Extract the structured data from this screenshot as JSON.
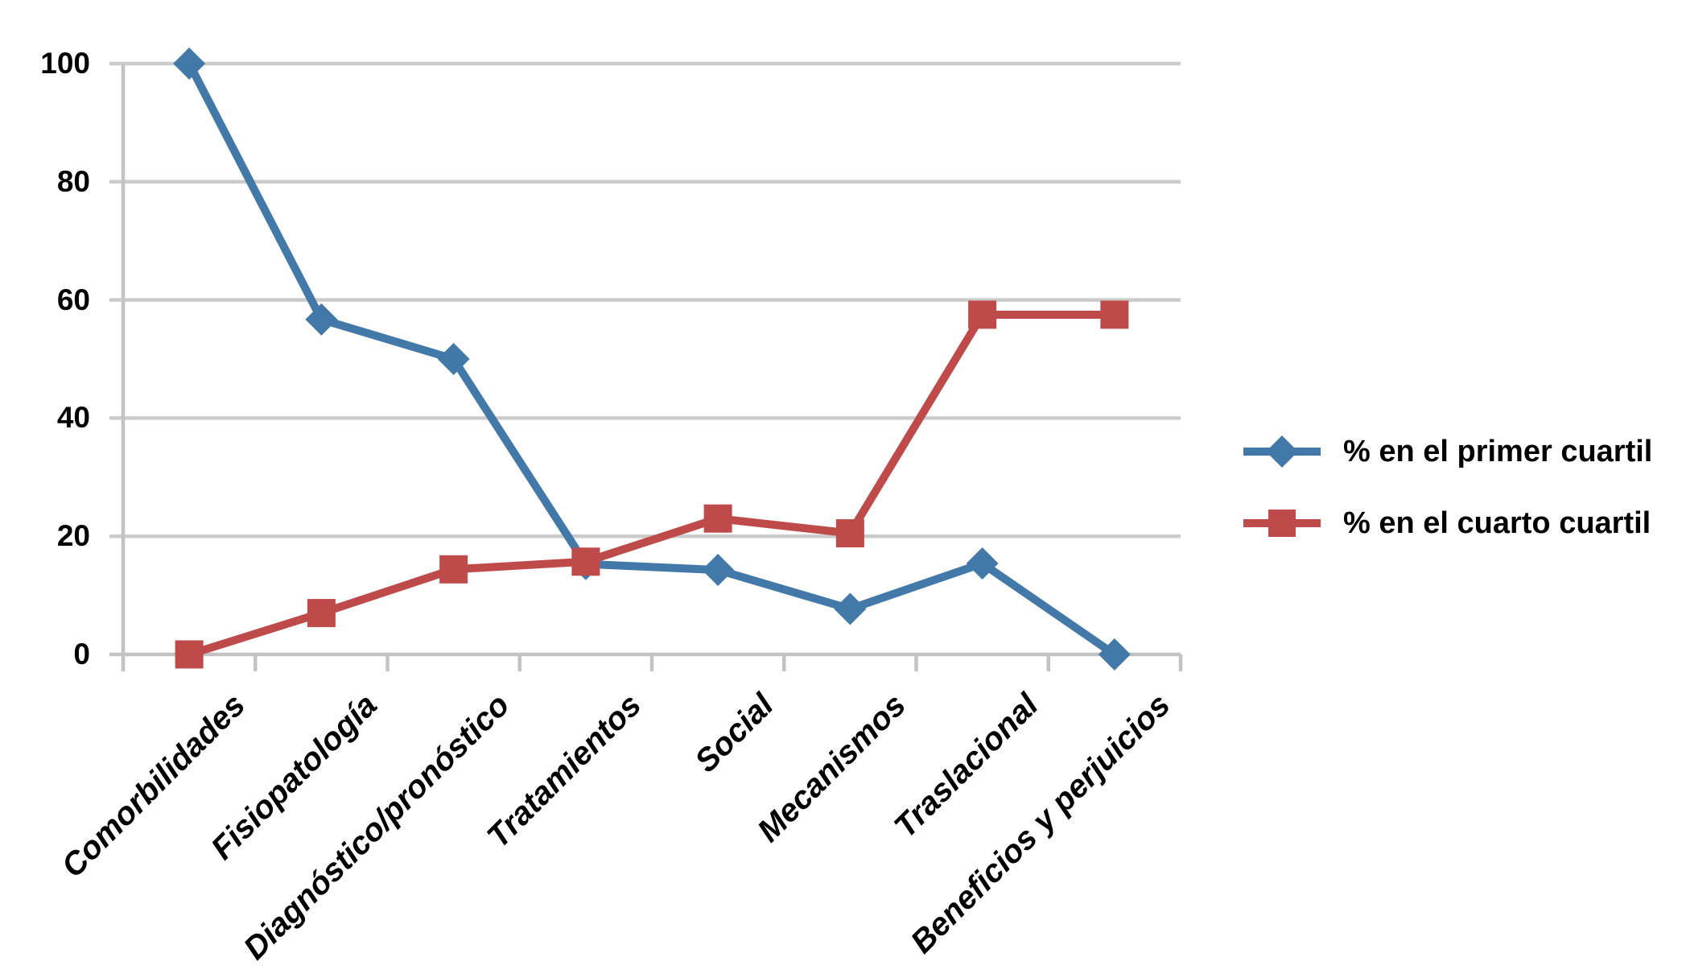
{
  "chart_data": {
    "type": "line",
    "title": "",
    "xlabel": "",
    "ylabel": "",
    "categories": [
      "Comorbilidades",
      "Fisiopatología",
      "Diagnóstico/pronóstico",
      "Tratamientos",
      "Social",
      "Mecanismos",
      "Traslacional",
      "Beneficios y perjuicios"
    ],
    "series": [
      {
        "name": "% en el primer cuartil",
        "marker": "diamond",
        "color": "#4379A9",
        "values": [
          100,
          56.7,
          50,
          15.3,
          14.3,
          7.7,
          15.4,
          0
        ]
      },
      {
        "name": "% en el cuarto cuartil",
        "marker": "square",
        "color": "#BE4B49",
        "values": [
          0,
          7,
          14.4,
          15.7,
          23,
          20.5,
          57.5,
          57.5
        ]
      }
    ],
    "ylim": [
      0,
      100
    ],
    "yticks": [
      0,
      20,
      40,
      60,
      80,
      100
    ],
    "grid": "horizontal",
    "legend_position": "right-middle",
    "x_tick_label_rotation_deg": 45
  },
  "colors": {
    "background": "#FFFFFF",
    "gridline": "#CBCBCB",
    "axis": "#C3C3C3",
    "text": "#000000"
  }
}
